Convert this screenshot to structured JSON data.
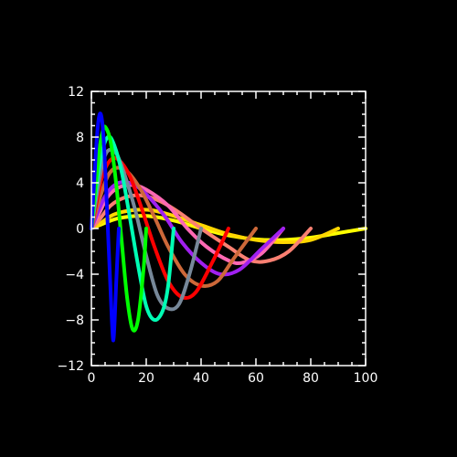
{
  "chart_data": {
    "type": "line",
    "title": "",
    "xlabel": "",
    "ylabel": "",
    "xlim": [
      0,
      100
    ],
    "ylim": [
      -12,
      12
    ],
    "x_ticks": [
      0,
      20,
      40,
      60,
      80,
      100
    ],
    "x_tick_labels": [
      "0",
      "20",
      "40",
      "60",
      "80",
      "100"
    ],
    "y_ticks": [
      -12,
      -8,
      -4,
      0,
      4,
      8,
      12
    ],
    "y_tick_labels": [
      "−12",
      "−8",
      "−4",
      "0",
      "4",
      "8",
      "12"
    ],
    "grid": false,
    "legend": "none",
    "background_color": "#000000",
    "axis_color": "#ffffff",
    "series": [
      {
        "color": "#ffff00",
        "points": [
          [
            0,
            0
          ],
          [
            3,
            0.3
          ],
          [
            10,
            0.9
          ],
          [
            20,
            1.1
          ],
          [
            30,
            0.7
          ],
          [
            40,
            0
          ],
          [
            50,
            -0.6
          ],
          [
            60,
            -0.95
          ],
          [
            70,
            -1.0
          ],
          [
            80,
            -0.8
          ],
          [
            90,
            -0.4
          ],
          [
            100,
            0
          ]
        ]
      },
      {
        "color": "#ffd700",
        "points": [
          [
            0,
            0
          ],
          [
            3,
            0.4
          ],
          [
            8,
            1.2
          ],
          [
            15,
            1.6
          ],
          [
            22,
            1.6
          ],
          [
            30,
            1.1
          ],
          [
            40,
            0.3
          ],
          [
            50,
            -0.5
          ],
          [
            60,
            -1.0
          ],
          [
            70,
            -1.2
          ],
          [
            80,
            -1.0
          ],
          [
            90,
            0
          ]
        ]
      },
      {
        "color": "#fa8072",
        "points": [
          [
            0,
            0
          ],
          [
            3,
            0.8
          ],
          [
            7,
            2.0
          ],
          [
            12,
            2.7
          ],
          [
            18,
            2.9
          ],
          [
            25,
            2.4
          ],
          [
            32,
            1.4
          ],
          [
            40,
            0
          ],
          [
            50,
            -1.6
          ],
          [
            58,
            -2.8
          ],
          [
            65,
            -2.8
          ],
          [
            72,
            -2.0
          ],
          [
            80,
            0
          ]
        ]
      },
      {
        "color": "#ff69b4",
        "points": [
          [
            0,
            0
          ],
          [
            3,
            1.4
          ],
          [
            6,
            2.8
          ],
          [
            10,
            3.6
          ],
          [
            15,
            3.8
          ],
          [
            20,
            3.4
          ],
          [
            28,
            2.0
          ],
          [
            35,
            0
          ],
          [
            42,
            -1.6
          ],
          [
            50,
            -2.8
          ],
          [
            55,
            -3.0
          ],
          [
            62,
            -2.2
          ],
          [
            70,
            0
          ]
        ]
      },
      {
        "color": "#a020f0",
        "points": [
          [
            0,
            0
          ],
          [
            3,
            1.8
          ],
          [
            6,
            3.2
          ],
          [
            10,
            4.0
          ],
          [
            15,
            3.9
          ],
          [
            20,
            3.0
          ],
          [
            27,
            1.0
          ],
          [
            33,
            -1.2
          ],
          [
            40,
            -3.0
          ],
          [
            47,
            -4.0
          ],
          [
            54,
            -3.6
          ],
          [
            62,
            -1.8
          ],
          [
            70,
            0
          ]
        ]
      },
      {
        "color": "#cd6839",
        "points": [
          [
            0,
            0
          ],
          [
            3,
            2.6
          ],
          [
            6,
            4.6
          ],
          [
            9,
            5.3
          ],
          [
            13,
            5.0
          ],
          [
            18,
            3.4
          ],
          [
            23,
            1.0
          ],
          [
            28,
            -1.6
          ],
          [
            34,
            -4.0
          ],
          [
            40,
            -5.0
          ],
          [
            46,
            -4.6
          ],
          [
            52,
            -2.6
          ],
          [
            60,
            0
          ]
        ]
      },
      {
        "color": "#ff0000",
        "points": [
          [
            0,
            0
          ],
          [
            2,
            2.4
          ],
          [
            4,
            4.6
          ],
          [
            7,
            6.0
          ],
          [
            10,
            6.0
          ],
          [
            14,
            4.6
          ],
          [
            18,
            2.0
          ],
          [
            23,
            -1.6
          ],
          [
            28,
            -4.6
          ],
          [
            33,
            -6.0
          ],
          [
            38,
            -5.6
          ],
          [
            44,
            -3.0
          ],
          [
            50,
            0
          ]
        ]
      },
      {
        "color": "#778899",
        "points": [
          [
            0,
            0
          ],
          [
            2,
            3.0
          ],
          [
            4,
            5.6
          ],
          [
            6,
            6.8
          ],
          [
            9,
            6.6
          ],
          [
            12,
            4.8
          ],
          [
            16,
            1.6
          ],
          [
            20,
            -2.4
          ],
          [
            24,
            -5.8
          ],
          [
            28,
            -7.0
          ],
          [
            32,
            -6.6
          ],
          [
            36,
            -3.8
          ],
          [
            40,
            0
          ]
        ]
      },
      {
        "color": "#00ffb4",
        "points": [
          [
            0,
            0
          ],
          [
            2,
            4.0
          ],
          [
            4,
            6.8
          ],
          [
            6,
            8.0
          ],
          [
            8,
            7.5
          ],
          [
            11,
            5.0
          ],
          [
            14,
            1.0
          ],
          [
            17,
            -3.2
          ],
          [
            20,
            -6.8
          ],
          [
            23,
            -8.0
          ],
          [
            26,
            -7.2
          ],
          [
            28,
            -5.0
          ],
          [
            30,
            0
          ]
        ]
      },
      {
        "color": "#00ff00",
        "points": [
          [
            0,
            0
          ],
          [
            1,
            2.4
          ],
          [
            2,
            4.8
          ],
          [
            3,
            7.0
          ],
          [
            4,
            8.4
          ],
          [
            5,
            8.9
          ],
          [
            7,
            7.6
          ],
          [
            9,
            4.0
          ],
          [
            11,
            -1.0
          ],
          [
            13,
            -6.0
          ],
          [
            15,
            -8.8
          ],
          [
            17,
            -8.0
          ],
          [
            19,
            -3.6
          ],
          [
            20,
            0
          ]
        ]
      },
      {
        "color": "#0000ff",
        "points": [
          [
            0,
            0
          ],
          [
            1,
            4.0
          ],
          [
            2,
            8.0
          ],
          [
            3,
            10.0
          ],
          [
            4,
            9.2
          ],
          [
            5,
            5.5
          ],
          [
            6,
            0
          ],
          [
            7,
            -5.5
          ],
          [
            7.5,
            -8.2
          ],
          [
            8,
            -9.8
          ],
          [
            8.5,
            -8.0
          ],
          [
            9,
            -5.0
          ],
          [
            10,
            0
          ]
        ]
      }
    ]
  }
}
